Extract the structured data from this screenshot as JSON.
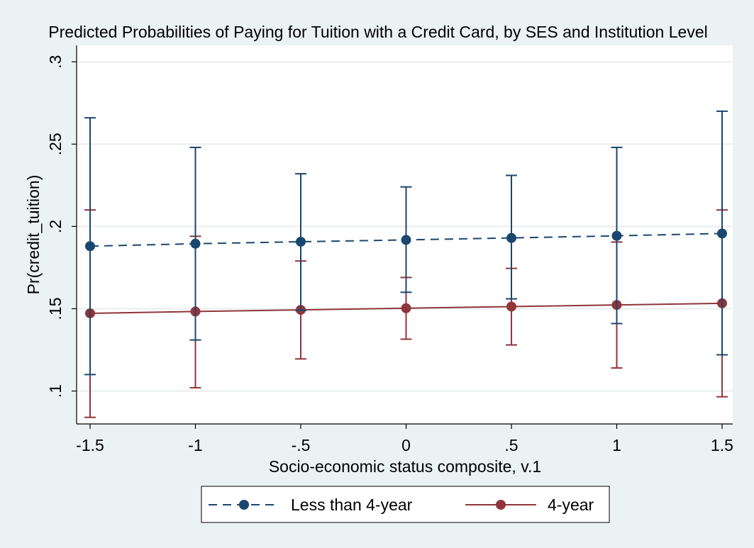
{
  "chart_data": {
    "type": "line",
    "title": "Predicted Probabilities of Paying for Tuition with a Credit Card, by SES and Institution Level",
    "xlabel": "Socio-economic status composite, v.1",
    "ylabel": "Pr(credit_tuition)",
    "x": [
      -1.5,
      -1,
      -0.5,
      0,
      0.5,
      1,
      1.5
    ],
    "x_tick_labels": [
      "-1.5",
      "-1",
      "-.5",
      "0",
      ".5",
      "1",
      "1.5"
    ],
    "y_ticks": [
      0.1,
      0.15,
      0.2,
      0.25,
      0.3
    ],
    "y_tick_labels": [
      ".1",
      ".15",
      ".2",
      ".25",
      ".3"
    ],
    "xlim": [
      -1.5,
      1.5
    ],
    "ylim": [
      0.08,
      0.31
    ],
    "grid": "horizontal",
    "legend_position": "bottom",
    "series": [
      {
        "name": "Less than 4-year",
        "color": "#1a476f",
        "line_style": "dashed",
        "values": [
          0.188,
          0.1895,
          0.1907,
          0.1918,
          0.193,
          0.1943,
          0.1957
        ],
        "ci_lower": [
          0.11,
          0.131,
          0.149,
          0.16,
          0.156,
          0.141,
          0.122
        ],
        "ci_upper": [
          0.266,
          0.248,
          0.232,
          0.224,
          0.231,
          0.248,
          0.27
        ]
      },
      {
        "name": "4-year",
        "color": "#90353b",
        "line_style": "solid",
        "values": [
          0.1472,
          0.1483,
          0.1493,
          0.1503,
          0.1513,
          0.1523,
          0.1533
        ],
        "ci_lower": [
          0.084,
          0.102,
          0.1195,
          0.1315,
          0.128,
          0.114,
          0.0965
        ],
        "ci_upper": [
          0.21,
          0.194,
          0.179,
          0.169,
          0.1745,
          0.1905,
          0.21
        ]
      }
    ]
  }
}
